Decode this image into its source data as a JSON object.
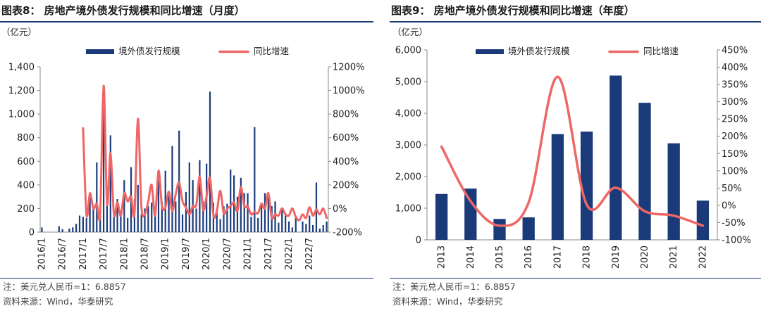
{
  "colors": {
    "bar": "#1a3a7a",
    "line": "#ee6666",
    "rule": "#1f3f7a"
  },
  "left": {
    "title": "图表8：  房地产境外债发行规模和同比增速（月度）",
    "note": "注：美元兑人民币=1：6.8857",
    "source": "资料来源：Wind，华泰研究",
    "unit": "（亿元）",
    "legend": {
      "bar": "境外债发行规模",
      "line": "同比增速"
    }
  },
  "right": {
    "title": "图表9：  房地产境外债发行规模和同比增速（年度）",
    "note": "注：美元兑人民币=1：6.8857",
    "source": "资料来源：Wind，华泰研究",
    "unit": "（亿元）",
    "legend": {
      "bar": "境外债发行规模",
      "line": "同比增速"
    }
  },
  "chart_data": [
    {
      "type": "bar",
      "title": "房地产境外债发行规模和同比增速（月度）",
      "categories": [
        "2016/1",
        "2016/2",
        "2016/3",
        "2016/4",
        "2016/5",
        "2016/6",
        "2016/7",
        "2016/8",
        "2016/9",
        "2016/10",
        "2016/11",
        "2016/12",
        "2017/1",
        "2017/2",
        "2017/3",
        "2017/4",
        "2017/5",
        "2017/6",
        "2017/7",
        "2017/8",
        "2017/9",
        "2017/10",
        "2017/11",
        "2017/12",
        "2018/1",
        "2018/2",
        "2018/3",
        "2018/4",
        "2018/5",
        "2018/6",
        "2018/7",
        "2018/8",
        "2018/9",
        "2018/10",
        "2018/11",
        "2018/12",
        "2019/1",
        "2019/2",
        "2019/3",
        "2019/4",
        "2019/5",
        "2019/6",
        "2019/7",
        "2019/8",
        "2019/9",
        "2019/10",
        "2019/11",
        "2019/12",
        "2020/1",
        "2020/2",
        "2020/3",
        "2020/4",
        "2020/5",
        "2020/6",
        "2020/7",
        "2020/8",
        "2020/9",
        "2020/10",
        "2020/11",
        "2020/12",
        "2021/1",
        "2021/2",
        "2021/3",
        "2021/4",
        "2021/5",
        "2021/6",
        "2021/7",
        "2021/8",
        "2021/9",
        "2021/10",
        "2021/11",
        "2021/12",
        "2022/1",
        "2022/2",
        "2022/3",
        "2022/4",
        "2022/5",
        "2022/6",
        "2022/7",
        "2022/8",
        "2022/9",
        "2022/10",
        "2022/11",
        "2022/12"
      ],
      "x_tick_labels": [
        "2016/1",
        "2016/7",
        "2017/1",
        "2017/7",
        "2018/1",
        "2018/7",
        "2019/1",
        "2019/7",
        "2020/1",
        "2020/7",
        "2021/1",
        "2021/7",
        "2022/1",
        "2022/7"
      ],
      "y_ticks": [
        "0",
        "200",
        "400",
        "600",
        "800",
        "1,000",
        "1,200",
        "1,400"
      ],
      "y2_ticks": [
        "-200%",
        "0%",
        "200%",
        "400%",
        "600%",
        "800%",
        "1000%",
        "1200%"
      ],
      "ylim": [
        0,
        1400
      ],
      "y2lim": [
        -200,
        1200
      ],
      "series": [
        {
          "name": "境外债发行规模",
          "axis": "left",
          "values": [
            40,
            0,
            0,
            0,
            0,
            50,
            25,
            0,
            30,
            40,
            70,
            140,
            130,
            120,
            300,
            200,
            590,
            140,
            1030,
            350,
            820,
            130,
            280,
            180,
            440,
            120,
            550,
            280,
            400,
            150,
            200,
            220,
            250,
            140,
            440,
            260,
            520,
            350,
            730,
            260,
            860,
            150,
            340,
            590,
            440,
            200,
            610,
            260,
            580,
            1190,
            250,
            200,
            110,
            220,
            240,
            530,
            480,
            300,
            460,
            330,
            330,
            130,
            890,
            120,
            250,
            330,
            320,
            220,
            260,
            80,
            200,
            160,
            90,
            40,
            120,
            0,
            90,
            70,
            140,
            60,
            420,
            30,
            60,
            90
          ]
        },
        {
          "name": "同比增速",
          "axis": "right",
          "values": [
            null,
            null,
            null,
            null,
            null,
            null,
            null,
            null,
            null,
            null,
            null,
            null,
            680,
            -50,
            130,
            0,
            40,
            -40,
            1040,
            40,
            470,
            -50,
            50,
            -60,
            130,
            60,
            100,
            -40,
            760,
            20,
            -50,
            60,
            200,
            -60,
            320,
            20,
            10,
            140,
            -20,
            120,
            220,
            60,
            10,
            -50,
            20,
            30,
            270,
            -10,
            100,
            260,
            -60,
            -20,
            150,
            -40,
            0,
            20,
            50,
            -20,
            180,
            20,
            20,
            -50,
            -30,
            -40,
            40,
            0,
            130,
            -80,
            -50,
            -60,
            0,
            -50,
            -60,
            0,
            -70,
            -100,
            -50,
            -80,
            10,
            -60,
            -10,
            -50,
            0,
            -80
          ]
        }
      ]
    },
    {
      "type": "bar",
      "title": "房地产境外债发行规模和同比增速（年度）",
      "categories": [
        "2013",
        "2014",
        "2015",
        "2016",
        "2017",
        "2018",
        "2019",
        "2020",
        "2021",
        "2022"
      ],
      "y_ticks": [
        "0",
        "1,000",
        "2,000",
        "3,000",
        "4,000",
        "5,000",
        "6,000"
      ],
      "y2_ticks": [
        "-100%",
        "-50%",
        "0%",
        "50%",
        "100%",
        "150%",
        "200%",
        "250%",
        "300%",
        "350%",
        "400%",
        "450%"
      ],
      "ylim": [
        0,
        6000
      ],
      "y2lim": [
        -100,
        450
      ],
      "series": [
        {
          "name": "境外债发行规模",
          "axis": "left",
          "values": [
            1450,
            1620,
            660,
            710,
            3340,
            3420,
            5190,
            4330,
            3050,
            1240
          ]
        },
        {
          "name": "同比增速",
          "axis": "right",
          "values": [
            170,
            12,
            -59,
            8,
            372,
            2,
            51,
            -17,
            -30,
            -59
          ]
        }
      ]
    }
  ]
}
